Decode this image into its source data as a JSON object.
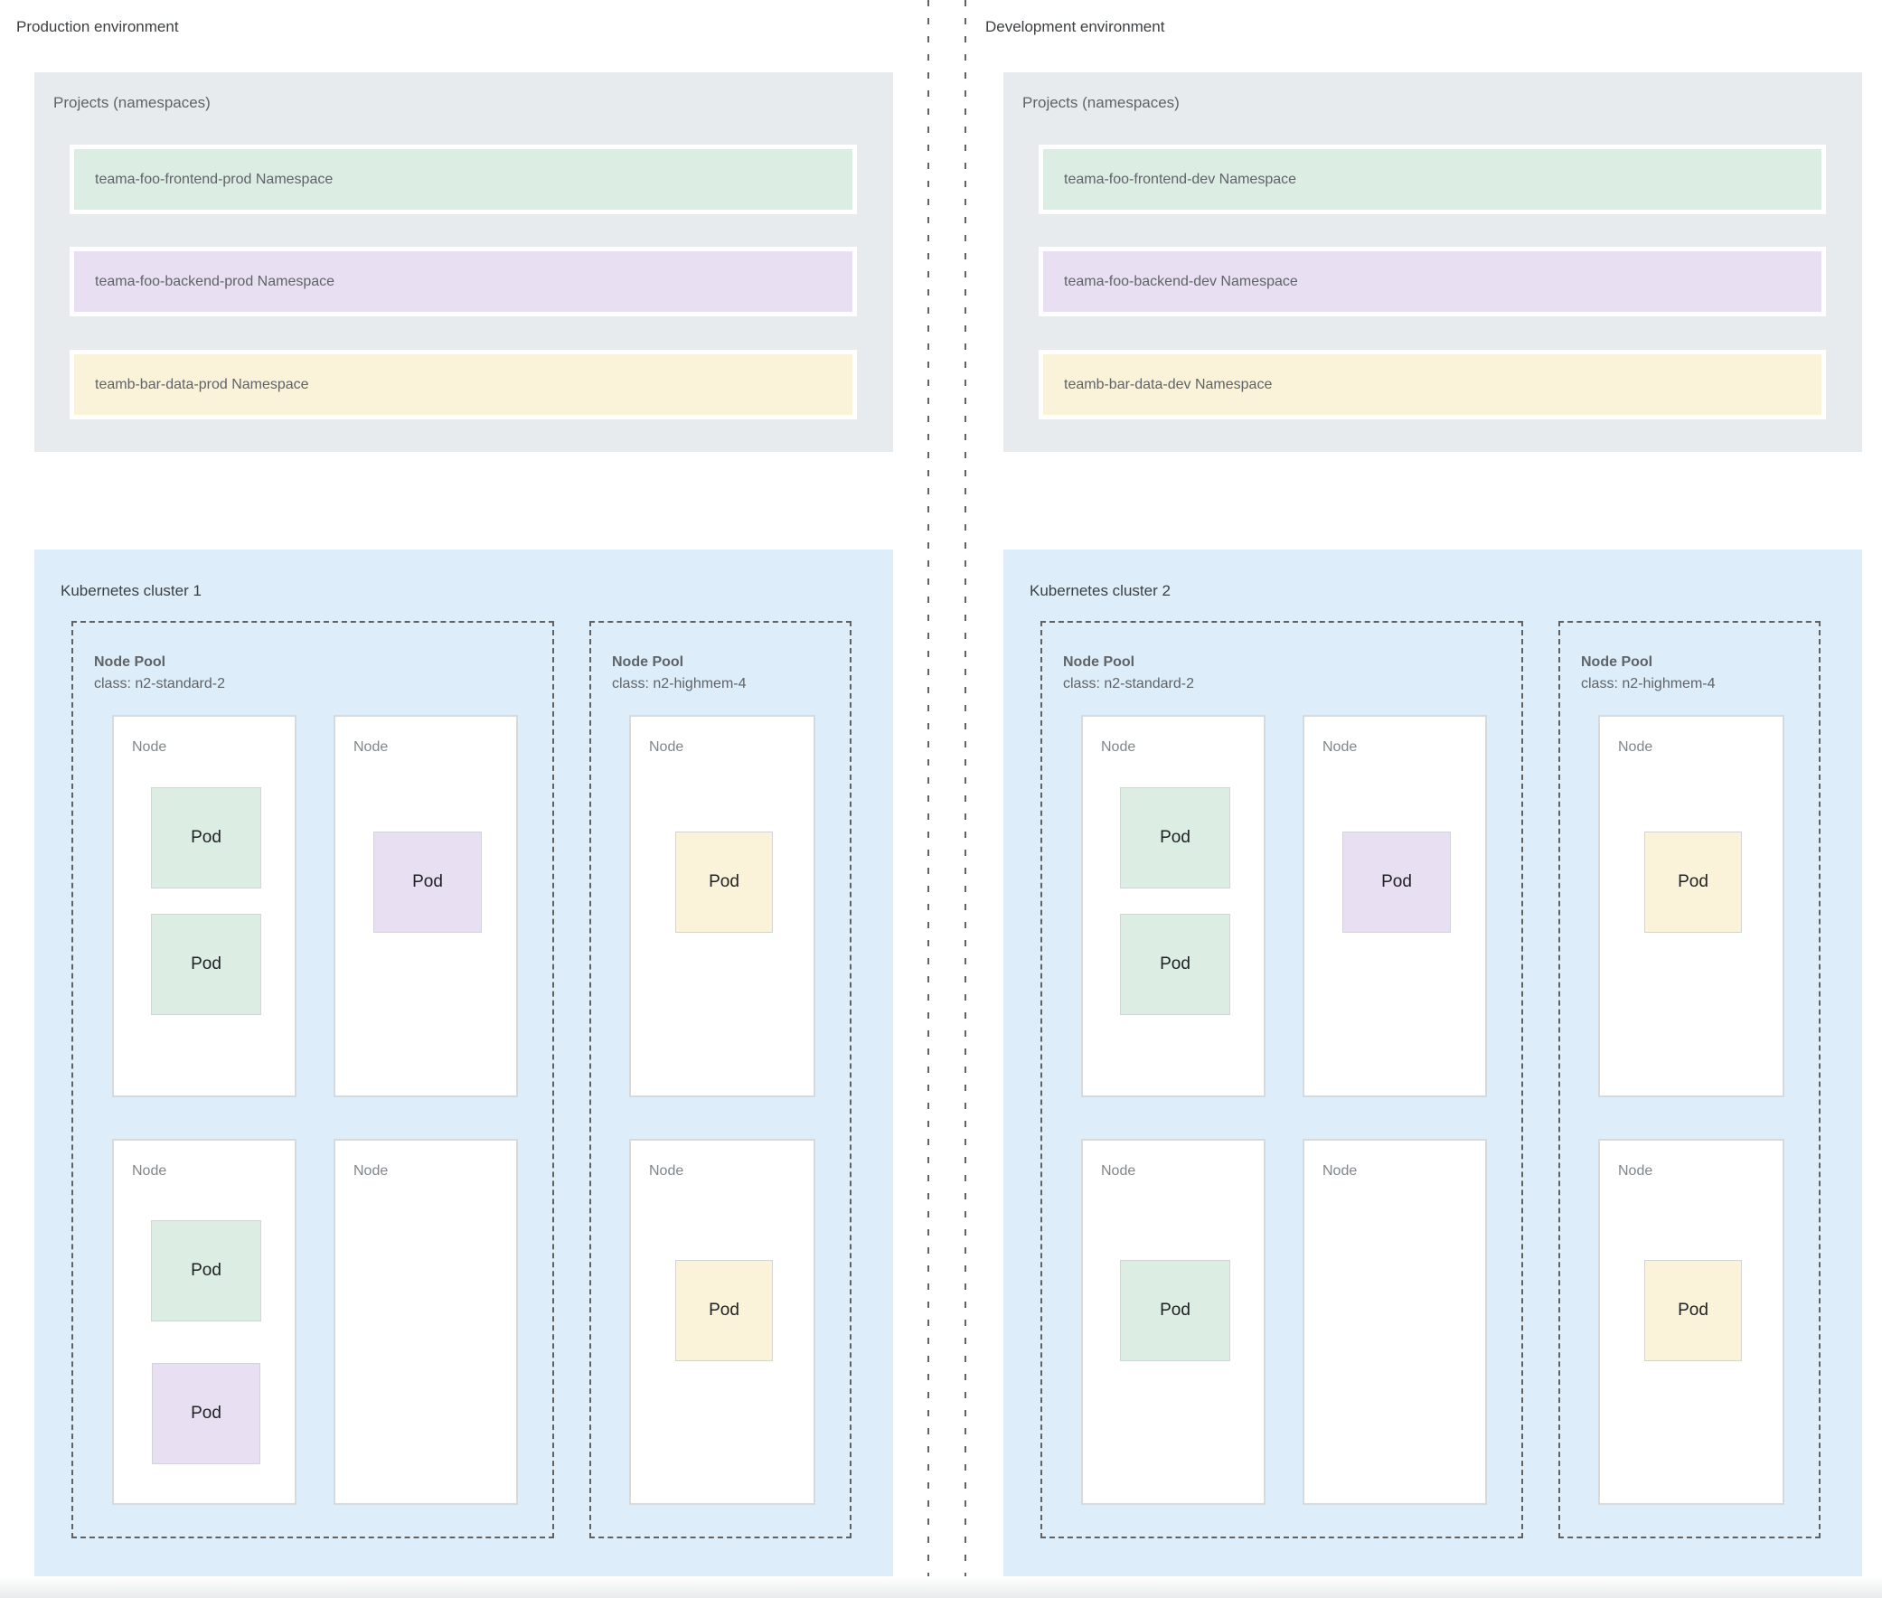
{
  "colors": {
    "namespace_green": "#dcede3",
    "namespace_purple": "#e8e0f2",
    "namespace_yellow": "#fbf3d9",
    "panel_gray": "#e8ebee",
    "cluster_blue": "#ddeefa",
    "dashed_border": "#616161",
    "text_primary": "#3c4043",
    "text_secondary": "#5f6368"
  },
  "environments": [
    {
      "title": "Production environment",
      "projects": {
        "title": "Projects (namespaces)",
        "namespaces": [
          {
            "label": "teama-foo-frontend-prod Namespace",
            "color": "green"
          },
          {
            "label": "teama-foo-backend-prod Namespace",
            "color": "purple"
          },
          {
            "label": "teamb-bar-data-prod Namespace",
            "color": "yellow"
          }
        ]
      },
      "cluster": {
        "title": "Kubernetes cluster 1",
        "node_pools": [
          {
            "title": "Node Pool",
            "machine_class": "class: n2-standard-2",
            "layout": "wide",
            "nodes": [
              {
                "label": "Node",
                "row": 1,
                "col": 1,
                "pods": [
                  {
                    "label": "Pod",
                    "color": "green",
                    "slot": "upper"
                  },
                  {
                    "label": "Pod",
                    "color": "green",
                    "slot": "lower"
                  }
                ]
              },
              {
                "label": "Node",
                "row": 1,
                "col": 2,
                "pods": [
                  {
                    "label": "Pod",
                    "color": "purple",
                    "slot": "middle"
                  }
                ]
              },
              {
                "label": "Node",
                "row": 2,
                "col": 1,
                "pods": [
                  {
                    "label": "Pod",
                    "color": "green",
                    "slot": "upper2"
                  },
                  {
                    "label": "Pod",
                    "color": "purple",
                    "slot": "lower2"
                  }
                ]
              },
              {
                "label": "Node",
                "row": 2,
                "col": 2,
                "pods": []
              }
            ]
          },
          {
            "title": "Node Pool",
            "machine_class": "class: n2-highmem-4",
            "layout": "narrow",
            "nodes": [
              {
                "label": "Node",
                "row": 1,
                "col": 1,
                "pods": [
                  {
                    "label": "Pod",
                    "color": "yellow",
                    "slot": "middle"
                  }
                ]
              },
              {
                "label": "Node",
                "row": 2,
                "col": 1,
                "pods": [
                  {
                    "label": "Pod",
                    "color": "yellow",
                    "slot": "center"
                  }
                ]
              }
            ]
          }
        ]
      }
    },
    {
      "title": "Development environment",
      "projects": {
        "title": "Projects (namespaces)",
        "namespaces": [
          {
            "label": "teama-foo-frontend-dev Namespace",
            "color": "green"
          },
          {
            "label": "teama-foo-backend-dev Namespace",
            "color": "purple"
          },
          {
            "label": "teamb-bar-data-dev Namespace",
            "color": "yellow"
          }
        ]
      },
      "cluster": {
        "title": "Kubernetes cluster 2",
        "node_pools": [
          {
            "title": "Node Pool",
            "machine_class": "class: n2-standard-2",
            "layout": "wide",
            "nodes": [
              {
                "label": "Node",
                "row": 1,
                "col": 1,
                "pods": [
                  {
                    "label": "Pod",
                    "color": "green",
                    "slot": "upper"
                  },
                  {
                    "label": "Pod",
                    "color": "green",
                    "slot": "lower"
                  }
                ]
              },
              {
                "label": "Node",
                "row": 1,
                "col": 2,
                "pods": [
                  {
                    "label": "Pod",
                    "color": "purple",
                    "slot": "middle"
                  }
                ]
              },
              {
                "label": "Node",
                "row": 2,
                "col": 1,
                "pods": [
                  {
                    "label": "Pod",
                    "color": "green",
                    "slot": "center"
                  }
                ]
              },
              {
                "label": "Node",
                "row": 2,
                "col": 2,
                "pods": []
              }
            ]
          },
          {
            "title": "Node Pool",
            "machine_class": "class: n2-highmem-4",
            "layout": "narrow",
            "nodes": [
              {
                "label": "Node",
                "row": 1,
                "col": 1,
                "pods": [
                  {
                    "label": "Pod",
                    "color": "yellow",
                    "slot": "middle"
                  }
                ]
              },
              {
                "label": "Node",
                "row": 2,
                "col": 1,
                "pods": [
                  {
                    "label": "Pod",
                    "color": "yellow",
                    "slot": "center"
                  }
                ]
              }
            ]
          }
        ]
      }
    }
  ]
}
